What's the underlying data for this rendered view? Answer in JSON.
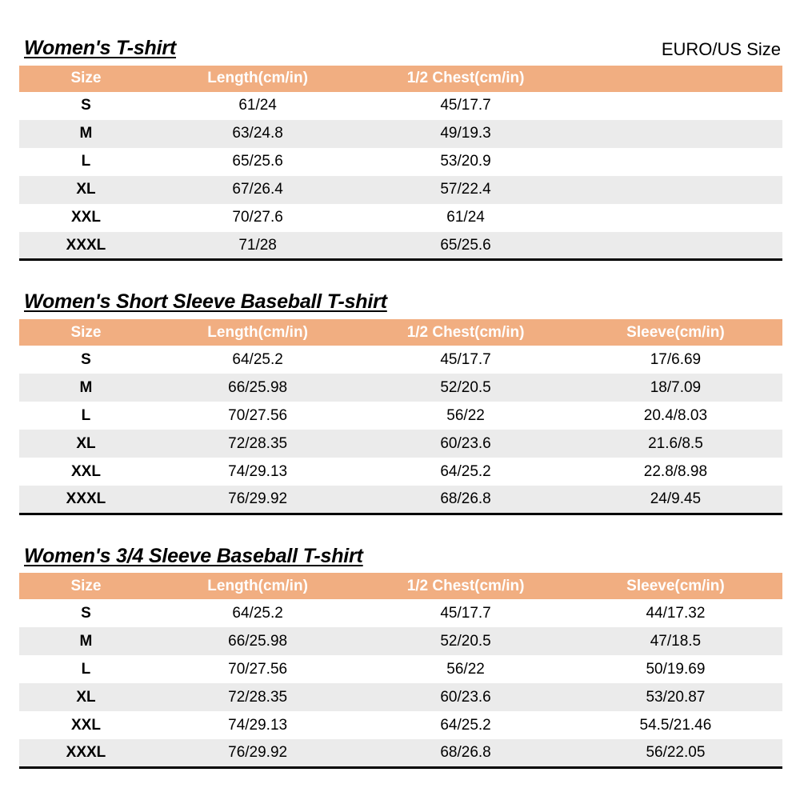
{
  "size_standard_label": "EURO/US Size",
  "colors": {
    "header_bg": "#F1AE81",
    "header_text": "#FFFFFF",
    "row_alt": "#EBEBEB",
    "border": "#000000"
  },
  "tables": [
    {
      "title": "Women's T-shirt",
      "columns": [
        "Size",
        "Length(cm/in)",
        "1/2 Chest(cm/in)",
        ""
      ],
      "rows": [
        [
          "S",
          "61/24",
          "45/17.7",
          ""
        ],
        [
          "M",
          "63/24.8",
          "49/19.3",
          ""
        ],
        [
          "L",
          "65/25.6",
          "53/20.9",
          ""
        ],
        [
          "XL",
          "67/26.4",
          "57/22.4",
          ""
        ],
        [
          "XXL",
          "70/27.6",
          "61/24",
          ""
        ],
        [
          "XXXL",
          "71/28",
          "65/25.6",
          ""
        ]
      ]
    },
    {
      "title": "Women's Short Sleeve Baseball T-shirt",
      "columns": [
        "Size",
        "Length(cm/in)",
        "1/2 Chest(cm/in)",
        "Sleeve(cm/in)"
      ],
      "rows": [
        [
          "S",
          "64/25.2",
          "45/17.7",
          "17/6.69"
        ],
        [
          "M",
          "66/25.98",
          "52/20.5",
          "18/7.09"
        ],
        [
          "L",
          "70/27.56",
          "56/22",
          "20.4/8.03"
        ],
        [
          "XL",
          "72/28.35",
          "60/23.6",
          "21.6/8.5"
        ],
        [
          "XXL",
          "74/29.13",
          "64/25.2",
          "22.8/8.98"
        ],
        [
          "XXXL",
          "76/29.92",
          "68/26.8",
          "24/9.45"
        ]
      ]
    },
    {
      "title": "Women's 3/4 Sleeve Baseball T-shirt",
      "columns": [
        "Size",
        "Length(cm/in)",
        "1/2 Chest(cm/in)",
        "Sleeve(cm/in)"
      ],
      "rows": [
        [
          "S",
          "64/25.2",
          "45/17.7",
          "44/17.32"
        ],
        [
          "M",
          "66/25.98",
          "52/20.5",
          "47/18.5"
        ],
        [
          "L",
          "70/27.56",
          "56/22",
          "50/19.69"
        ],
        [
          "XL",
          "72/28.35",
          "60/23.6",
          "53/20.87"
        ],
        [
          "XXL",
          "74/29.13",
          "64/25.2",
          "54.5/21.46"
        ],
        [
          "XXXL",
          "76/29.92",
          "68/26.8",
          "56/22.05"
        ]
      ]
    }
  ]
}
